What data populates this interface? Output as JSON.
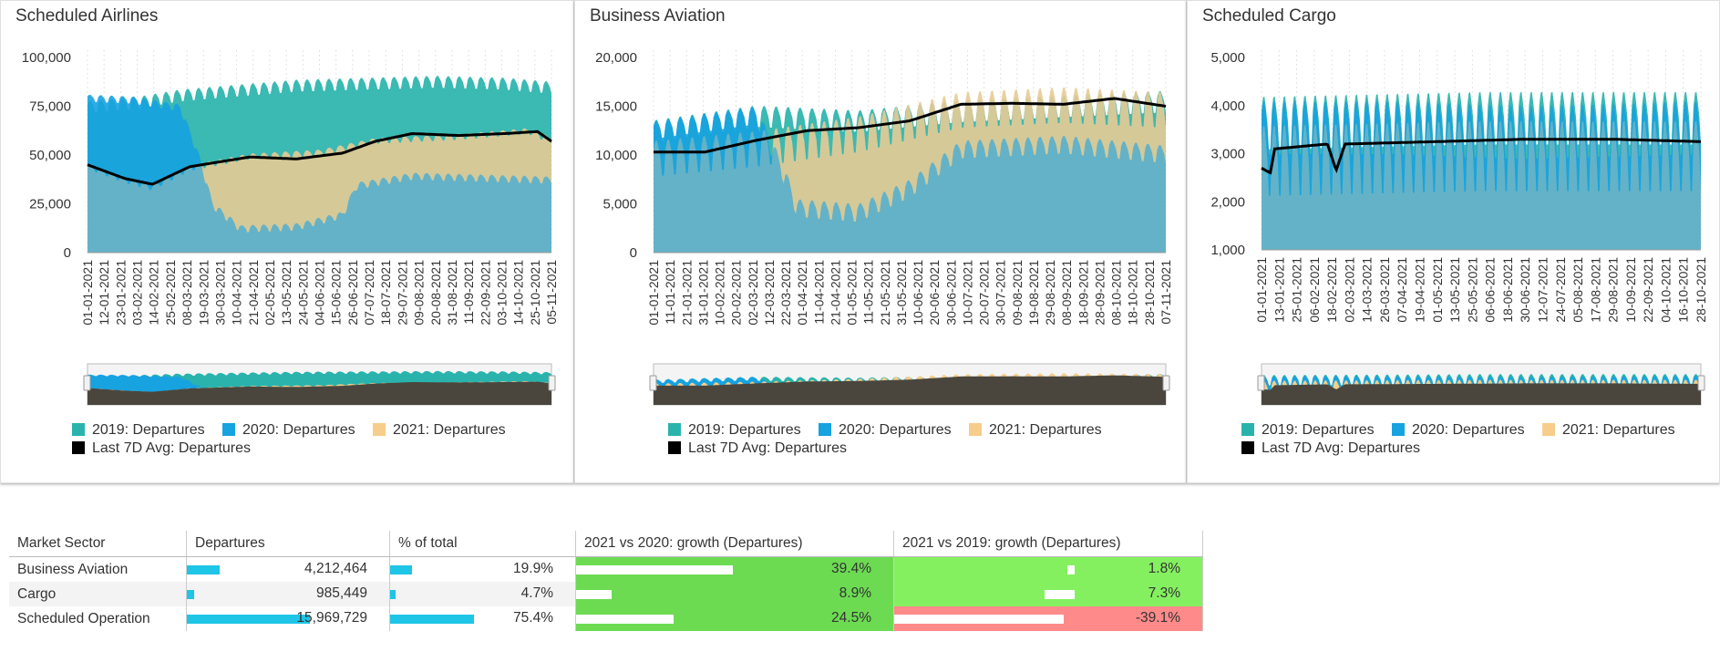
{
  "colors": {
    "c2019": "#2ab3ad",
    "c2020": "#17a2e0",
    "c2021": "#f6cd8a",
    "avg": "#000000",
    "grid": "#e3e3e3",
    "barBlue": "#1ec5e6",
    "green": "#6cdb52",
    "lightgreen": "#84f060",
    "red": "#ff8a8a"
  },
  "legend": {
    "s2019": "2019: Departures",
    "s2020": "2020: Departures",
    "s2021": "2021: Departures",
    "avg": "Last 7D Avg: Departures"
  },
  "chart_data": [
    {
      "type": "area",
      "title": "Scheduled Airlines",
      "ylim": [
        0,
        100000
      ],
      "yticks": [
        "0",
        "25,000",
        "50,000",
        "75,000",
        "100,000"
      ],
      "ytick_values": [
        0,
        25000,
        50000,
        75000,
        100000
      ],
      "xticks": [
        "01-01-2021",
        "12-01-2021",
        "23-01-2021",
        "03-02-2021",
        "14-02-2021",
        "25-02-2021",
        "08-03-2021",
        "19-03-2021",
        "30-03-2021",
        "10-04-2021",
        "21-04-2021",
        "02-05-2021",
        "13-05-2021",
        "24-05-2021",
        "04-06-2021",
        "15-06-2021",
        "26-06-2021",
        "07-07-2021",
        "18-07-2021",
        "29-07-2021",
        "09-08-2021",
        "20-08-2021",
        "31-08-2021",
        "11-09-2021",
        "22-09-2021",
        "03-10-2021",
        "14-10-2021",
        "25-10-2021",
        "05-11-2021"
      ],
      "series": [
        {
          "name": "2019: Departures",
          "anchors": [
            [
              0,
              76000
            ],
            [
              0.1,
              78000
            ],
            [
              0.2,
              82000
            ],
            [
              0.3,
              84000
            ],
            [
              0.45,
              87000
            ],
            [
              0.6,
              88000
            ],
            [
              0.75,
              89000
            ],
            [
              0.9,
              88000
            ],
            [
              1,
              86000
            ]
          ],
          "amp": 5000,
          "period": 7
        },
        {
          "name": "2020: Departures",
          "anchors": [
            [
              0,
              80000
            ],
            [
              0.1,
              79000
            ],
            [
              0.2,
              75000
            ],
            [
              0.24,
              50000
            ],
            [
              0.27,
              25000
            ],
            [
              0.33,
              13000
            ],
            [
              0.45,
              14000
            ],
            [
              0.55,
              20000
            ],
            [
              0.58,
              35000
            ],
            [
              0.7,
              40000
            ],
            [
              0.85,
              39000
            ],
            [
              1,
              38000
            ]
          ],
          "amp": 3000,
          "period": 7
        },
        {
          "name": "2021: Departures",
          "anchors": [
            [
              0,
              45000
            ],
            [
              0.08,
              38000
            ],
            [
              0.14,
              34000
            ],
            [
              0.22,
              44000
            ],
            [
              0.35,
              50000
            ],
            [
              0.5,
              52000
            ],
            [
              0.62,
              58000
            ],
            [
              0.8,
              60000
            ],
            [
              0.95,
              63000
            ],
            [
              1,
              58000
            ]
          ],
          "amp": 2500,
          "period": 7
        },
        {
          "name": "Last 7D Avg: Departures",
          "anchors": [
            [
              0,
              45000
            ],
            [
              0.08,
              38000
            ],
            [
              0.14,
              35000
            ],
            [
              0.22,
              44000
            ],
            [
              0.35,
              49000
            ],
            [
              0.45,
              48000
            ],
            [
              0.55,
              51000
            ],
            [
              0.62,
              57000
            ],
            [
              0.7,
              61000
            ],
            [
              0.8,
              60000
            ],
            [
              0.9,
              61000
            ],
            [
              0.97,
              62000
            ],
            [
              1,
              57000
            ]
          ],
          "amp": 0,
          "period": 7
        }
      ]
    },
    {
      "type": "area",
      "title": "Business Aviation",
      "ylim": [
        0,
        20000
      ],
      "yticks": [
        "0",
        "5,000",
        "10,000",
        "15,000",
        "20,000"
      ],
      "ytick_values": [
        0,
        5000,
        10000,
        15000,
        20000
      ],
      "xticks": [
        "01-01-2021",
        "11-01-2021",
        "21-01-2021",
        "31-01-2021",
        "10-02-2021",
        "20-02-2021",
        "02-03-2021",
        "12-03-2021",
        "22-03-2021",
        "01-04-2021",
        "11-04-2021",
        "21-04-2021",
        "01-05-2021",
        "11-05-2021",
        "21-05-2021",
        "31-05-2021",
        "10-06-2021",
        "20-06-2021",
        "30-06-2021",
        "10-07-2021",
        "20-07-2021",
        "30-07-2021",
        "09-08-2021",
        "19-08-2021",
        "29-08-2021",
        "08-09-2021",
        "18-09-2021",
        "28-09-2021",
        "08-10-2021",
        "18-10-2021",
        "28-10-2021",
        "07-11-2021"
      ],
      "series": [
        {
          "name": "2019: Departures",
          "anchors": [
            [
              0,
              13000
            ],
            [
              0.2,
              14500
            ],
            [
              0.4,
              14000
            ],
            [
              0.6,
              15000
            ],
            [
              0.8,
              15500
            ],
            [
              1,
              16000
            ]
          ],
          "amp": 1800,
          "period": 7
        },
        {
          "name": "2020: Departures",
          "anchors": [
            [
              0,
              13000
            ],
            [
              0.2,
              14500
            ],
            [
              0.25,
              9000
            ],
            [
              0.28,
              5000
            ],
            [
              0.4,
              4500
            ],
            [
              0.5,
              7000
            ],
            [
              0.6,
              11000
            ],
            [
              0.8,
              11500
            ],
            [
              1,
              10500
            ]
          ],
          "amp": 1500,
          "period": 7
        },
        {
          "name": "2021: Departures",
          "anchors": [
            [
              0,
              10500
            ],
            [
              0.2,
              11500
            ],
            [
              0.4,
              13000
            ],
            [
              0.6,
              15500
            ],
            [
              0.8,
              16000
            ],
            [
              1,
              15500
            ]
          ],
          "amp": 3000,
          "period": 7
        },
        {
          "name": "Last 7D Avg: Departures",
          "anchors": [
            [
              0,
              10300
            ],
            [
              0.1,
              10300
            ],
            [
              0.2,
              11500
            ],
            [
              0.3,
              12500
            ],
            [
              0.4,
              12800
            ],
            [
              0.5,
              13500
            ],
            [
              0.6,
              15200
            ],
            [
              0.7,
              15300
            ],
            [
              0.8,
              15200
            ],
            [
              0.9,
              15800
            ],
            [
              1,
              15000
            ]
          ],
          "amp": 0,
          "period": 7
        }
      ]
    },
    {
      "type": "area",
      "title": "Scheduled Cargo",
      "ylim": [
        1000,
        5000
      ],
      "yticks": [
        "1,000",
        "2,000",
        "3,000",
        "4,000",
        "5,000"
      ],
      "ytick_values": [
        1000,
        2000,
        3000,
        4000,
        5000
      ],
      "xticks": [
        "01-01-2021",
        "13-01-2021",
        "25-01-2021",
        "06-02-2021",
        "18-02-2021",
        "02-03-2021",
        "14-03-2021",
        "26-03-2021",
        "07-04-2021",
        "19-04-2021",
        "01-05-2021",
        "13-05-2021",
        "25-05-2021",
        "06-06-2021",
        "18-06-2021",
        "30-06-2021",
        "12-07-2021",
        "24-07-2021",
        "05-08-2021",
        "17-08-2021",
        "29-08-2021",
        "10-09-2021",
        "22-09-2021",
        "04-10-2021",
        "16-10-2021",
        "28-10-2021"
      ],
      "series": [
        {
          "name": "2019: Departures",
          "anchors": [
            [
              0,
              3900
            ],
            [
              0.5,
              4000
            ],
            [
              1,
              4000
            ]
          ],
          "amp": 900,
          "period": 7
        },
        {
          "name": "2020: Departures",
          "anchors": [
            [
              0,
              3800
            ],
            [
              0.3,
              3800
            ],
            [
              0.6,
              3700
            ],
            [
              1,
              3800
            ]
          ],
          "amp": 900,
          "period": 7
        },
        {
          "name": "2021: Departures",
          "anchors": [
            [
              0,
              3200
            ],
            [
              0.5,
              3300
            ],
            [
              1,
              3300
            ]
          ],
          "amp": 1200,
          "period": 7
        },
        {
          "name": "Last 7D Avg: Departures",
          "anchors": [
            [
              0,
              2700
            ],
            [
              0.02,
              2600
            ],
            [
              0.03,
              3100
            ],
            [
              0.15,
              3200
            ],
            [
              0.17,
              2650
            ],
            [
              0.19,
              3200
            ],
            [
              0.4,
              3250
            ],
            [
              0.6,
              3300
            ],
            [
              0.8,
              3300
            ],
            [
              1,
              3250
            ]
          ],
          "amp": 0,
          "period": 7
        }
      ]
    }
  ],
  "table": {
    "headers": [
      "Market Sector",
      "Departures",
      "% of total",
      "2021 vs 2020: growth (Departures)",
      "2021 vs 2019: growth (Departures)"
    ],
    "rows": [
      {
        "sector": "Business Aviation",
        "departures": "4,212,464",
        "departures_frac": 0.264,
        "pct": "19.9%",
        "pct_frac": 0.199,
        "g2020": "39.4%",
        "g2020_frac": 0.394,
        "g2019": "1.8%",
        "g2019_frac": 0.018,
        "g2019_neg": false
      },
      {
        "sector": "Cargo",
        "departures": "985,449",
        "departures_frac": 0.062,
        "pct": "4.7%",
        "pct_frac": 0.047,
        "g2020": "8.9%",
        "g2020_frac": 0.089,
        "g2019": "7.3%",
        "g2019_frac": 0.073,
        "g2019_neg": false
      },
      {
        "sector": "Scheduled Operation",
        "departures": "15,969,729",
        "departures_frac": 1.0,
        "pct": "75.4%",
        "pct_frac": 0.754,
        "g2020": "24.5%",
        "g2020_frac": 0.245,
        "g2019": "-39.1%",
        "g2019_frac": 0.391,
        "g2019_neg": true
      }
    ]
  }
}
